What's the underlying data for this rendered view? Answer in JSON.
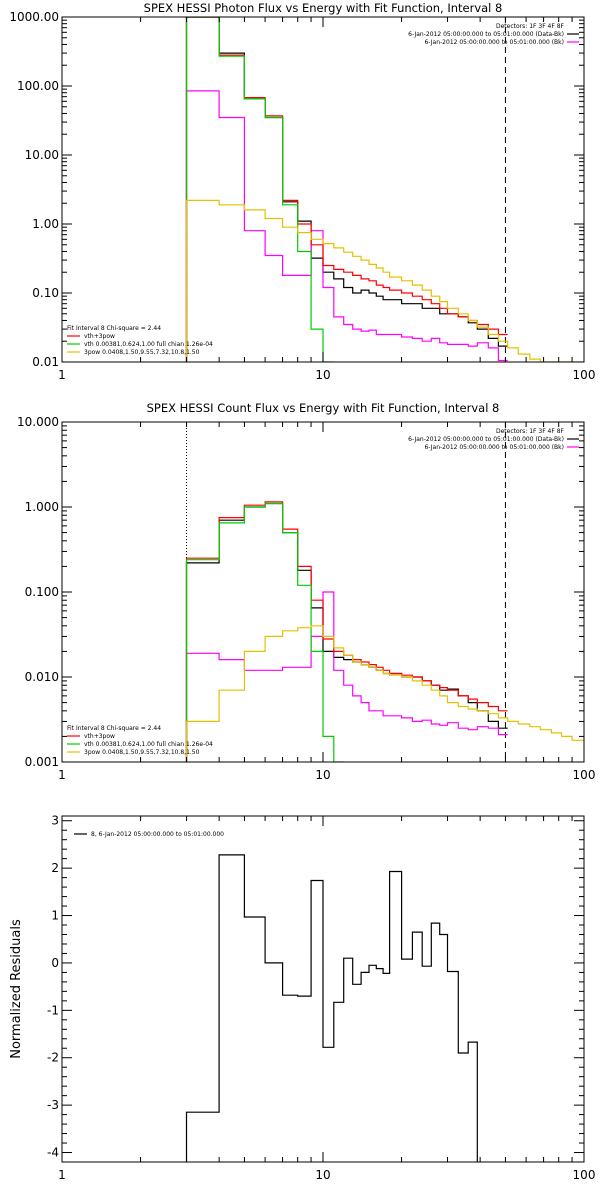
{
  "chart_data": [
    {
      "id": "photon",
      "type": "line",
      "title": "SPEX HESSI Photon Flux vs Energy with Fit Function, Interval 8",
      "xscale": "log",
      "yscale": "log",
      "xlim": [
        1,
        100
      ],
      "ylim": [
        0.01,
        1000
      ],
      "x_ticks": [
        1,
        10,
        100
      ],
      "x_tick_labels": [
        "1",
        "10",
        "100"
      ],
      "y_ticks": [
        0.01,
        0.1,
        1,
        10,
        100,
        1000
      ],
      "y_tick_labels": [
        "0.01",
        "0.10",
        "1.00",
        "10.00",
        "100.00",
        "1000.00"
      ],
      "vlines": [
        {
          "x": 3,
          "style": "dotted"
        },
        {
          "x": 50,
          "style": "dashed"
        }
      ],
      "legend_tr": [
        {
          "text": "Detectors: 1F 3F 4F 8F",
          "color": null
        },
        {
          "text": "6-Jan-2012 05:00:00.000 to 05:01:00.000 (Data-Bk)",
          "color": "#000000"
        },
        {
          "text": "6-Jan-2012 05:00:00.000 to 05:01:00.000 (Bk)",
          "color": "#ff00ff"
        }
      ],
      "legend_bl": [
        {
          "text": "Fit Interval  8   Chi-square = 2.44",
          "color": null
        },
        {
          "text": "vth+3pow",
          "color": "#ff0000"
        },
        {
          "text": "vth 0.00381,0.624,1.00  full chian 1.26e-04",
          "color": "#00cc00"
        },
        {
          "text": "3pow 0.0408,1.50,9.55,7.32,10.8,1.50",
          "color": "#e6c000"
        }
      ],
      "edges": [
        3,
        4,
        5,
        6,
        7,
        8,
        9,
        10,
        11,
        12,
        13,
        14,
        15,
        16,
        17,
        18,
        20,
        22,
        24,
        26,
        28,
        30,
        33,
        36,
        39,
        43,
        47,
        51,
        56,
        62,
        68,
        75,
        82,
        90,
        100
      ],
      "series": [
        {
          "color": "#000000",
          "values": [
            1000,
            300,
            65,
            35,
            2.1,
            1.1,
            0.32,
            0.2,
            0.16,
            0.12,
            0.1,
            0.11,
            0.1,
            0.09,
            0.08,
            0.08,
            0.07,
            0.07,
            0.06,
            0.06,
            0.05,
            0.05,
            0.045,
            0.037,
            0.03,
            0.022,
            0.017
          ]
        },
        {
          "color": "#ff00ff",
          "values": [
            85,
            35,
            0.8,
            0.35,
            0.18,
            0.18,
            0.8,
            0.12,
            0.045,
            0.035,
            0.03,
            0.028,
            0.029,
            0.025,
            0.025,
            0.025,
            0.023,
            0.022,
            0.02,
            0.022,
            0.019,
            0.018,
            0.018,
            0.017,
            0.019,
            0.016,
            0.0105
          ]
        },
        {
          "color": "#ff0000",
          "values": [
            1000,
            280,
            68,
            37,
            2.2,
            1.0,
            0.5,
            0.25,
            0.22,
            0.2,
            0.18,
            0.16,
            0.15,
            0.13,
            0.12,
            0.11,
            0.1,
            0.09,
            0.08,
            0.07,
            0.06,
            0.05,
            0.045,
            0.04,
            0.035,
            0.03,
            0.025
          ]
        },
        {
          "color": "#00cc00",
          "values": [
            1000,
            270,
            65,
            35,
            1.9,
            0.4,
            0.03,
            0.008
          ]
        },
        {
          "color": "#e6c000",
          "values": [
            2.2,
            1.9,
            1.6,
            1.2,
            0.9,
            0.75,
            0.6,
            0.52,
            0.45,
            0.39,
            0.34,
            0.3,
            0.26,
            0.23,
            0.2,
            0.17,
            0.15,
            0.13,
            0.11,
            0.09,
            0.075,
            0.06,
            0.05,
            0.04,
            0.032,
            0.025,
            0.02,
            0.016,
            0.013,
            0.011,
            0.0095,
            0.0085,
            0.0075,
            0.0068
          ]
        }
      ]
    },
    {
      "id": "count",
      "type": "line",
      "title": "SPEX HESSI Count Flux vs Energy with Fit Function, Interval 8",
      "xscale": "log",
      "yscale": "log",
      "xlim": [
        1,
        100
      ],
      "ylim": [
        0.001,
        10
      ],
      "x_ticks": [
        1,
        10,
        100
      ],
      "x_tick_labels": [
        "1",
        "10",
        "100"
      ],
      "y_ticks": [
        0.001,
        0.01,
        0.1,
        1,
        10
      ],
      "y_tick_labels": [
        "0.001",
        "0.010",
        "0.100",
        "1.000",
        "10.000"
      ],
      "vlines": [
        {
          "x": 3,
          "style": "dotted"
        },
        {
          "x": 50,
          "style": "dashed"
        }
      ],
      "legend_tr": [
        {
          "text": "Detectors: 1F 3F 4F 8F",
          "color": null
        },
        {
          "text": "6-Jan-2012 05:00:00.000 to 05:01:00.000 (Data-Bk)",
          "color": "#000000"
        },
        {
          "text": "6-Jan-2012 05:00:00.000 to 05:01:00.000 (Bk)",
          "color": "#ff00ff"
        }
      ],
      "legend_bl": [
        {
          "text": "Fit Interval  8   Chi-square = 2.44",
          "color": null
        },
        {
          "text": "vth+3pow",
          "color": "#ff0000"
        },
        {
          "text": "vth 0.00381,0.624,1.00  full chian 1.26e-04",
          "color": "#00cc00"
        },
        {
          "text": "3pow 0.0408,1.50,9.55,7.32,10.8,1.50",
          "color": "#e6c000"
        }
      ],
      "edges": [
        3,
        4,
        5,
        6,
        7,
        8,
        9,
        10,
        11,
        12,
        13,
        14,
        15,
        16,
        17,
        18,
        20,
        22,
        24,
        26,
        28,
        30,
        33,
        36,
        39,
        43,
        47,
        51,
        56,
        62,
        68,
        75,
        82,
        90,
        100
      ],
      "series": [
        {
          "color": "#000000",
          "values": [
            0.22,
            0.7,
            1.0,
            1.1,
            0.5,
            0.18,
            0.065,
            0.02,
            0.017,
            0.016,
            0.015,
            0.014,
            0.013,
            0.012,
            0.011,
            0.011,
            0.01,
            0.01,
            0.009,
            0.008,
            0.007,
            0.0072,
            0.006,
            0.005,
            0.004,
            0.003,
            0.0025
          ]
        },
        {
          "color": "#ff00ff",
          "values": [
            0.019,
            0.016,
            0.012,
            0.012,
            0.013,
            0.013,
            0.03,
            0.1,
            0.012,
            0.008,
            0.006,
            0.005,
            0.004,
            0.004,
            0.0035,
            0.0035,
            0.0033,
            0.003,
            0.0031,
            0.0028,
            0.0027,
            0.0029,
            0.0025,
            0.0024,
            0.0026,
            0.0025,
            0.0021
          ]
        },
        {
          "color": "#ff0000",
          "values": [
            0.25,
            0.75,
            1.05,
            1.15,
            0.55,
            0.2,
            0.08,
            0.028,
            0.02,
            0.018,
            0.016,
            0.015,
            0.014,
            0.013,
            0.012,
            0.011,
            0.0105,
            0.01,
            0.009,
            0.008,
            0.0075,
            0.007,
            0.006,
            0.0055,
            0.005,
            0.0045,
            0.004
          ]
        },
        {
          "color": "#00cc00",
          "values": [
            0.24,
            0.65,
            1.0,
            1.1,
            0.5,
            0.12,
            0.02,
            0.002,
            0.0005
          ]
        },
        {
          "color": "#e6c000",
          "values": [
            0.003,
            0.007,
            0.02,
            0.03,
            0.035,
            0.038,
            0.04,
            0.03,
            0.022,
            0.018,
            0.015,
            0.014,
            0.013,
            0.012,
            0.011,
            0.0105,
            0.01,
            0.009,
            0.008,
            0.007,
            0.006,
            0.005,
            0.0045,
            0.0042,
            0.004,
            0.0037,
            0.0033,
            0.003,
            0.0028,
            0.0026,
            0.0024,
            0.0022,
            0.002,
            0.0018
          ]
        }
      ]
    },
    {
      "id": "resid",
      "type": "line",
      "title": "",
      "ylabel": "Normalized Residuals",
      "xscale": "log",
      "yscale": "linear",
      "xlim": [
        1,
        100
      ],
      "ylim": [
        -4.2,
        3.1
      ],
      "x_ticks": [
        1,
        10,
        100
      ],
      "x_tick_labels": [
        "1",
        "10",
        "100"
      ],
      "y_ticks": [
        -4,
        -3,
        -2,
        -1,
        0,
        1,
        2,
        3
      ],
      "y_tick_labels": [
        "-4",
        "-3",
        "-2",
        "-1",
        "0",
        "1",
        "2",
        "3"
      ],
      "vlines": [],
      "legend_tl": [
        {
          "text": "8, 6-Jan-2012 05:00:00.000 to 05:01:00.000",
          "color": "#000000"
        }
      ],
      "edges": [
        3,
        4,
        5,
        6,
        7,
        8,
        9,
        10,
        11,
        12,
        13,
        14,
        15,
        16,
        17,
        18,
        20,
        22,
        24,
        26,
        28,
        30,
        33,
        36,
        39,
        43,
        47,
        51
      ],
      "series": [
        {
          "color": "#000000",
          "values": [
            -3.15,
            2.28,
            0.97,
            0.0,
            -0.68,
            -0.7,
            1.74,
            -1.78,
            -0.83,
            0.1,
            -0.45,
            -0.2,
            -0.05,
            -0.12,
            -0.22,
            1.93,
            0.08,
            0.65,
            -0.07,
            0.84,
            0.6,
            -0.18,
            -1.9,
            -1.67
          ]
        }
      ],
      "drop_to_bottom": true
    }
  ]
}
